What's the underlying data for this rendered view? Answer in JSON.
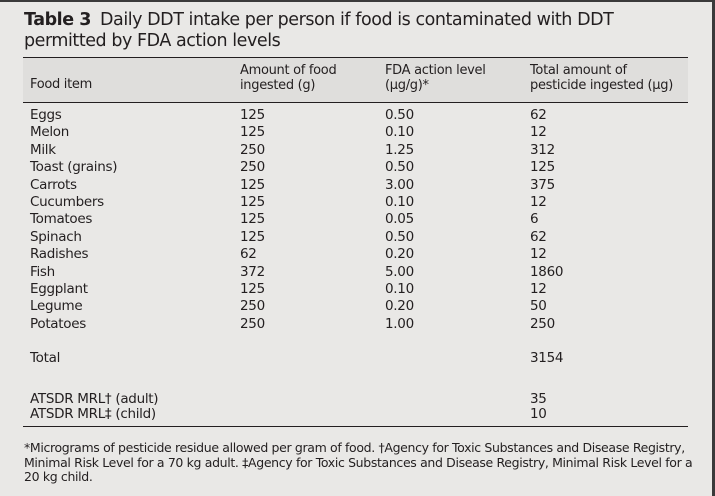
{
  "caption": {
    "label": "Table 3",
    "title": "Daily DDT intake per person if food is contaminated with DDT permitted by FDA action levels"
  },
  "headers": {
    "food": "Food item",
    "amount_line1": "Amount of food",
    "amount_line2": "ingested (g)",
    "fda_line1": "FDA action level",
    "fda_line2": "(µg/g)*",
    "total_line1": "Total amount of",
    "total_line2": "pesticide ingested (µg)"
  },
  "rows": [
    {
      "food": "Eggs",
      "amount": "125",
      "fda": "0.50",
      "total": "62"
    },
    {
      "food": "Melon",
      "amount": "125",
      "fda": "0.10",
      "total": "12"
    },
    {
      "food": "Milk",
      "amount": "250",
      "fda": "1.25",
      "total": "312"
    },
    {
      "food": "Toast (grains)",
      "amount": "250",
      "fda": "0.50",
      "total": "125"
    },
    {
      "food": "Carrots",
      "amount": "125",
      "fda": "3.00",
      "total": "375"
    },
    {
      "food": "Cucumbers",
      "amount": "125",
      "fda": "0.10",
      "total": "12"
    },
    {
      "food": "Tomatoes",
      "amount": "125",
      "fda": "0.05",
      "total": "6"
    },
    {
      "food": "Spinach",
      "amount": "125",
      "fda": "0.50",
      "total": "62"
    },
    {
      "food": "Radishes",
      "amount": "62",
      "fda": "0.20",
      "total": "12"
    },
    {
      "food": "Fish",
      "amount": "372",
      "fda": "5.00",
      "total": "1860"
    },
    {
      "food": "Eggplant",
      "amount": "125",
      "fda": "0.10",
      "total": "12"
    },
    {
      "food": "Legume",
      "amount": "250",
      "fda": "0.20",
      "total": "50"
    },
    {
      "food": "Potatoes",
      "amount": "250",
      "fda": "1.00",
      "total": "250"
    }
  ],
  "total": {
    "label": "Total",
    "value": "3154"
  },
  "mrl": [
    {
      "label": "ATSDR MRL† (adult)",
      "value": "35"
    },
    {
      "label": "ATSDR MRL‡ (child)",
      "value": "10"
    }
  ],
  "footnote": "*Micrograms of pesticide residue allowed per gram of food. †Agency for Toxic Substances and Disease Registry, Minimal Risk Level for a 70 kg adult. ‡Agency for Toxic Substances and Disease Registry, Minimal Risk Level for a 20 kg child."
}
